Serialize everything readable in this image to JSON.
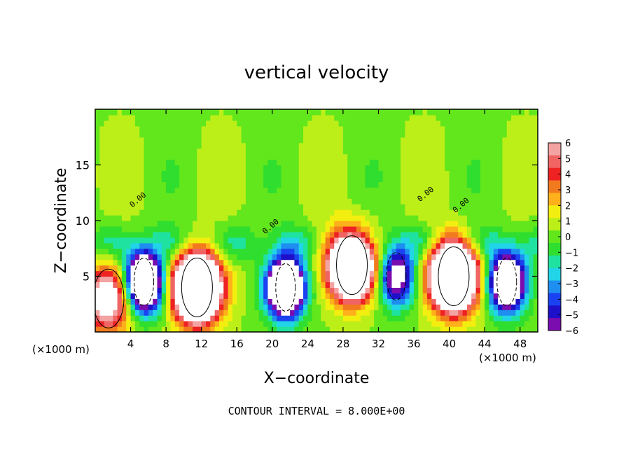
{
  "chart_data": {
    "type": "heatmap",
    "title": "vertical velocity",
    "xlabel": "X−coordinate",
    "ylabel": "Z−coordinate",
    "x_unit_left": "(×1000 m)",
    "x_unit_right": "(×1000 m)",
    "footer": "CONTOUR INTERVAL = 8.000E+00",
    "xlim": [
      0,
      50
    ],
    "ylim": [
      0,
      20
    ],
    "xticks": [
      4,
      8,
      12,
      16,
      20,
      24,
      28,
      32,
      36,
      40,
      44,
      48
    ],
    "yticks": [
      5,
      10,
      15
    ],
    "colorbar": {
      "range": [
        -6,
        6
      ],
      "ticks": [
        6,
        5,
        4,
        3,
        2,
        1,
        0,
        -1,
        -2,
        -3,
        -4,
        -5,
        -6
      ],
      "tick_labels": [
        "6",
        "5",
        "4",
        "3",
        "2",
        "1",
        "0",
        "−1",
        "−2",
        "−3",
        "−4",
        "−5",
        "−6"
      ],
      "colors": [
        "#f4a3a3",
        "#f06464",
        "#ee2222",
        "#f27a1e",
        "#ffb01a",
        "#f2ee10",
        "#bcef18",
        "#62e61c",
        "#2fde2f",
        "#1fe2a0",
        "#22d4e8",
        "#1e8ef0",
        "#1a42f0",
        "#1e10c8",
        "#7a0cb0"
      ]
    },
    "contour_labels": [
      "0.00",
      "0.00",
      "0.00",
      "0.00"
    ],
    "features": [
      {
        "kind": "updraft",
        "x": 1.5,
        "z": 3.0,
        "peak": 8
      },
      {
        "kind": "updraft",
        "x": 11.5,
        "z": 4.0,
        "peak": 18
      },
      {
        "kind": "updraft",
        "x": 29.0,
        "z": 6.0,
        "peak": 16
      },
      {
        "kind": "updraft",
        "x": 40.5,
        "z": 5.0,
        "peak": 18
      },
      {
        "kind": "downdraft",
        "x": 5.5,
        "z": 4.5,
        "peak": -14
      },
      {
        "kind": "downdraft",
        "x": 21.5,
        "z": 4.0,
        "peak": -14
      },
      {
        "kind": "downdraft",
        "x": 34.0,
        "z": 5.0,
        "peak": -8
      },
      {
        "kind": "downdraft",
        "x": 46.5,
        "z": 4.5,
        "peak": -12
      }
    ]
  }
}
